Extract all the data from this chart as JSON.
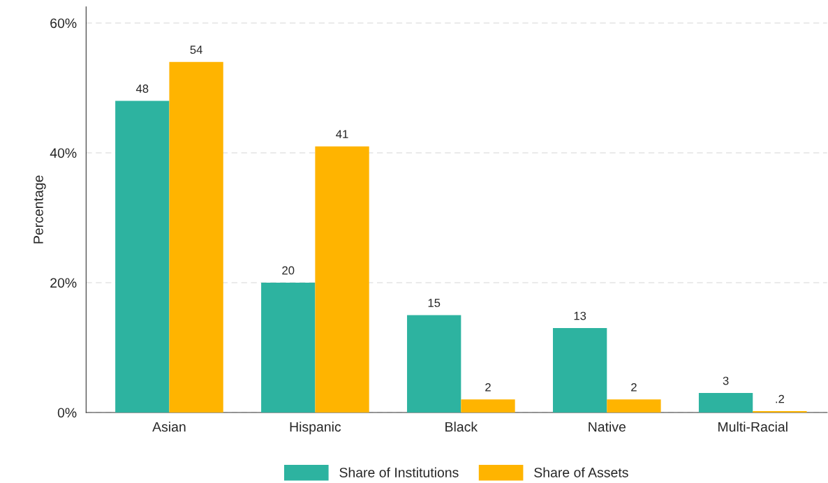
{
  "chart_data": {
    "type": "bar",
    "ylabel": "Percentage",
    "categories": [
      "Asian",
      "Hispanic",
      "Black",
      "Native",
      "Multi-Racial"
    ],
    "series": [
      {
        "name": "Share of Institutions",
        "color": "#2db3a0",
        "values": [
          48,
          20,
          15,
          13,
          3
        ],
        "value_labels": [
          "48",
          "20",
          "15",
          "13",
          "3"
        ]
      },
      {
        "name": "Share of Assets",
        "color": "#ffb400",
        "values": [
          54,
          41,
          2,
          2,
          0.2
        ],
        "value_labels": [
          "54",
          "41",
          "2",
          "2",
          ".2"
        ]
      }
    ],
    "ylim": [
      0,
      62.5
    ],
    "yticks": [
      {
        "value": 0,
        "label": "0%"
      },
      {
        "value": 20,
        "label": "20%"
      },
      {
        "value": 40,
        "label": "40%"
      },
      {
        "value": 60,
        "label": "60%"
      }
    ],
    "grid": "y",
    "legend": "bottom"
  }
}
